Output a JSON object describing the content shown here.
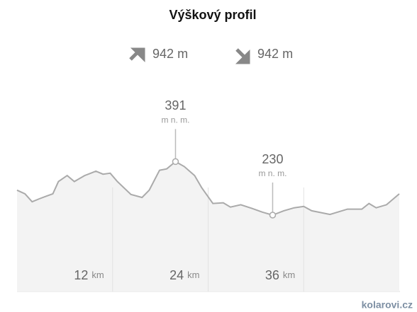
{
  "chart_data": {
    "type": "area",
    "title": "Výškový profil",
    "ascent": 942,
    "descent": 942,
    "stat_unit": "m",
    "x": [
      0,
      1.0,
      1.9,
      2.8,
      3.7,
      4.5,
      5.2,
      6.3,
      7.2,
      8.5,
      9.9,
      10.8,
      11.7,
      12.6,
      14.3,
      15.7,
      16.6,
      17.9,
      18.8,
      19.9,
      21.0,
      22.3,
      23.2,
      24.6,
      25.9,
      26.8,
      28.1,
      29.5,
      30.8,
      32.1,
      33.5,
      34.8,
      36.0,
      37.0,
      39.3,
      41.5,
      43.3,
      44.2,
      45.1,
      46.4,
      48.0
    ],
    "values": [
      305,
      294,
      270,
      279,
      287,
      294,
      331,
      349,
      331,
      349,
      362,
      353,
      356,
      331,
      292,
      283,
      305,
      365,
      369,
      391,
      376,
      349,
      312,
      265,
      267,
      254,
      261,
      250,
      239,
      230,
      243,
      252,
      256,
      243,
      232,
      248,
      248,
      265,
      252,
      261,
      294
    ],
    "color": "#aaaaaa",
    "xlim": [
      0,
      48
    ],
    "xticks": [
      12,
      24,
      36
    ],
    "x_unit": "km",
    "ylim": [
      0,
      450
    ],
    "annotations": [
      {
        "x": 19.9,
        "value": 391,
        "unit": "m n. m."
      },
      {
        "x": 32.1,
        "value": 230,
        "unit": "m n. m."
      }
    ],
    "watermark": "kolarovi.cz"
  }
}
